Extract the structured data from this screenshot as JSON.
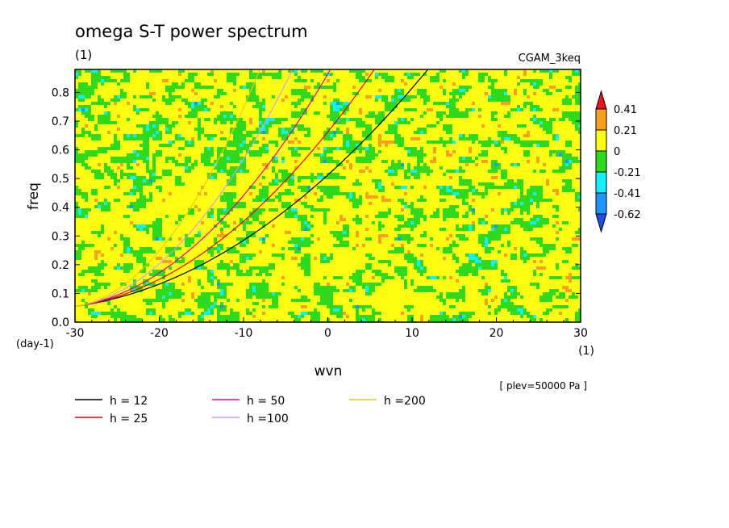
{
  "chart_data": {
    "type": "heatmap",
    "title": "omega S-T power spectrum",
    "subtitle": "(1)",
    "dataset_label": "CGAM_3keq",
    "xlabel": "wvn",
    "x_unit": "(1)",
    "ylabel": "freq",
    "y_unit": "(day-1)",
    "xlim": [
      -30,
      30
    ],
    "ylim": [
      0,
      0.88
    ],
    "x_ticks": [
      "-30",
      "-20",
      "-10",
      "0",
      "10",
      "20",
      "30"
    ],
    "y_ticks": [
      "0.0",
      "0.1",
      "0.2",
      "0.3",
      "0.4",
      "0.5",
      "0.6",
      "0.7",
      "0.8"
    ],
    "annotation": "[ plev=50000 Pa ]",
    "colorbar": {
      "labels": [
        "0.41",
        "0.21",
        "0",
        "-0.21",
        "-0.41",
        "-0.62"
      ],
      "levels": [
        0.41,
        0.21,
        0,
        -0.21,
        -0.41,
        -0.62
      ],
      "colors": [
        "#e8141c",
        "#f5a01e",
        "#ffff14",
        "#2ed91e",
        "#14f0ff",
        "#1e96ff",
        "#1e50e6"
      ]
    },
    "field_description": "mostly yellow (0 to 0.21) and green (-0.21 to 0) speckled field with scattered orange, cyan and blue patches",
    "dispersion_curves": [
      {
        "name": "h = 12",
        "color": "#000000",
        "equivalent_depth": 12
      },
      {
        "name": "h = 25",
        "color": "#e60000",
        "equivalent_depth": 25
      },
      {
        "name": "h = 50",
        "color": "#e6009a",
        "equivalent_depth": 50
      },
      {
        "name": "h =100",
        "color": "#d79be6",
        "equivalent_depth": 100
      },
      {
        "name": "h =200",
        "color": "#f0c814",
        "equivalent_depth": 200
      }
    ],
    "legend_placement": "bottom-left",
    "grid": false
  },
  "colors": {
    "background": "#ffffff",
    "yellow": "#ffff14",
    "green": "#2ed91e",
    "orange": "#f5a01e",
    "cyan": "#14f0ff",
    "blue": "#1e96ff",
    "red": "#e8141c"
  }
}
